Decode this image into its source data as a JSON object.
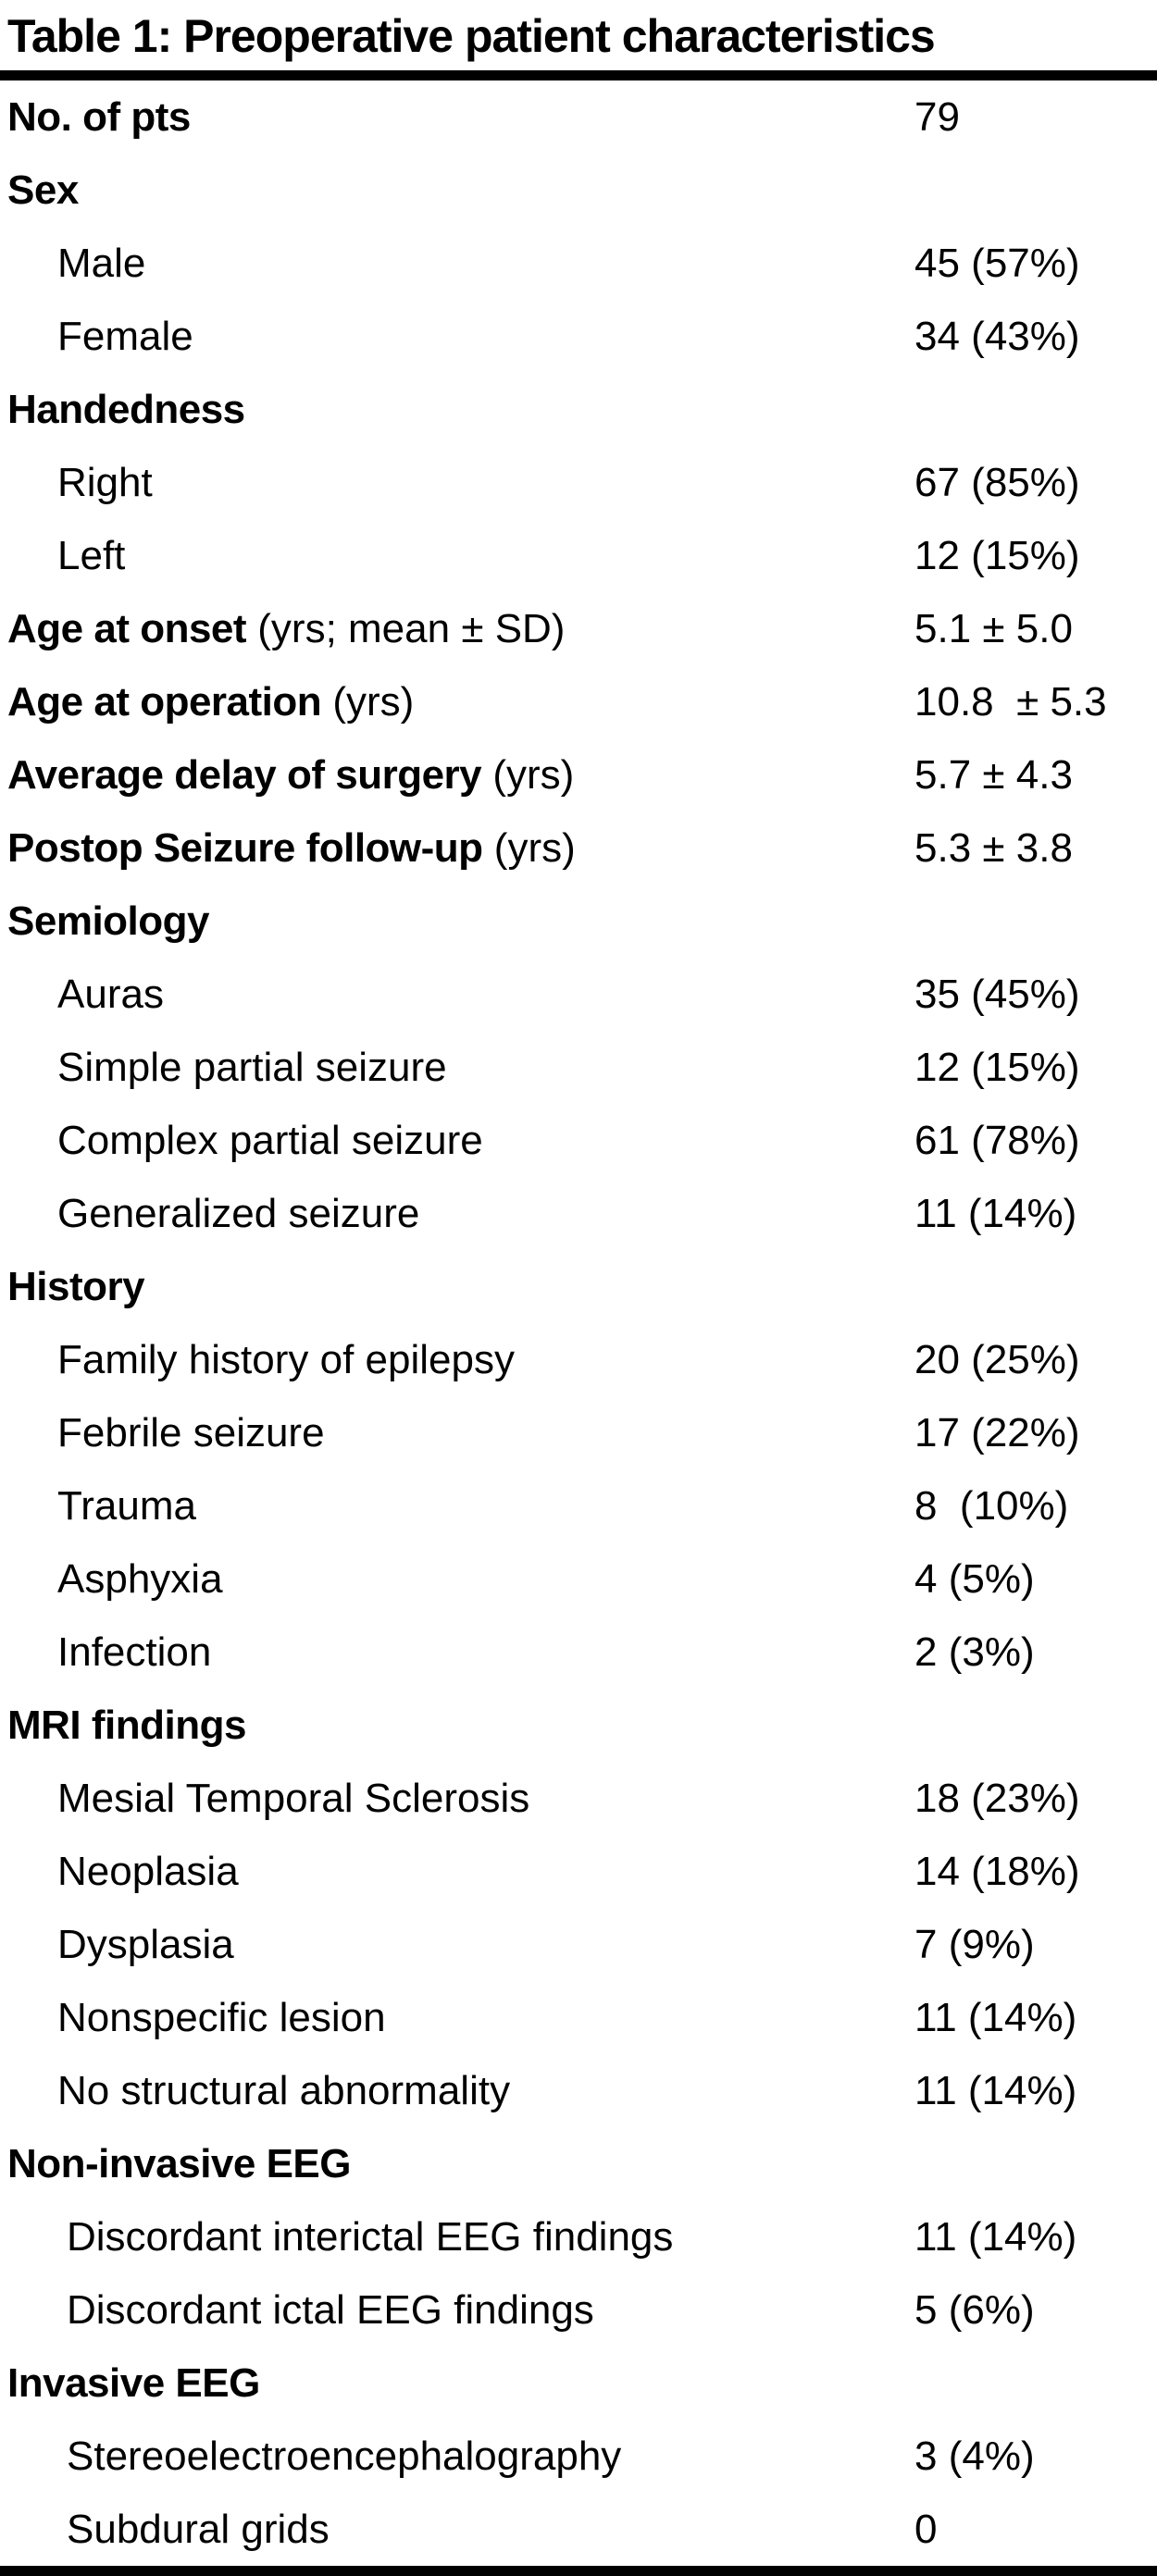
{
  "colors": {
    "text": "#000000",
    "background": "#ffffff",
    "rule": "#000000"
  },
  "table": {
    "title": "Table 1: Preoperative patient characteristics",
    "rows": [
      {
        "label": "No. of pts",
        "suffix": "",
        "value": "79",
        "bold": true,
        "indent": 0
      },
      {
        "label": "Sex",
        "suffix": "",
        "value": "",
        "bold": true,
        "indent": 0
      },
      {
        "label": "Male",
        "suffix": "",
        "value": "45 (57%)",
        "bold": false,
        "indent": 1
      },
      {
        "label": "Female",
        "suffix": "",
        "value": "34 (43%)",
        "bold": false,
        "indent": 1
      },
      {
        "label": "Handedness",
        "suffix": "",
        "value": "",
        "bold": true,
        "indent": 0
      },
      {
        "label": "Right",
        "suffix": "",
        "value": "67 (85%)",
        "bold": false,
        "indent": 1
      },
      {
        "label": "Left",
        "suffix": "",
        "value": "12 (15%)",
        "bold": false,
        "indent": 1
      },
      {
        "label": "Age at onset",
        "suffix": " (yrs; mean ± SD)",
        "value": "5.1 ± 5.0",
        "bold": true,
        "indent": 0
      },
      {
        "label": "Age at operation",
        "suffix": " (yrs)",
        "value": "10.8  ± 5.3",
        "bold": true,
        "indent": 0
      },
      {
        "label": "Average delay of surgery",
        "suffix": " (yrs)",
        "value": "5.7 ± 4.3",
        "bold": true,
        "indent": 0
      },
      {
        "label": "Postop Seizure follow-up",
        "suffix": " (yrs)",
        "value": "5.3 ± 3.8",
        "bold": true,
        "indent": 0
      },
      {
        "label": "Semiology",
        "suffix": "",
        "value": "",
        "bold": true,
        "indent": 0
      },
      {
        "label": "Auras",
        "suffix": "",
        "value": "35 (45%)",
        "bold": false,
        "indent": 1
      },
      {
        "label": "Simple partial seizure",
        "suffix": "",
        "value": "12 (15%)",
        "bold": false,
        "indent": 1
      },
      {
        "label": "Complex partial seizure",
        "suffix": "",
        "value": "61 (78%)",
        "bold": false,
        "indent": 1
      },
      {
        "label": "Generalized seizure",
        "suffix": "",
        "value": "11 (14%)",
        "bold": false,
        "indent": 1
      },
      {
        "label": "History",
        "suffix": "",
        "value": "",
        "bold": true,
        "indent": 0
      },
      {
        "label": "Family history of epilepsy",
        "suffix": "",
        "value": "20 (25%)",
        "bold": false,
        "indent": 1
      },
      {
        "label": "Febrile seizure",
        "suffix": "",
        "value": "17 (22%)",
        "bold": false,
        "indent": 1
      },
      {
        "label": "Trauma",
        "suffix": "",
        "value": "8  (10%)",
        "bold": false,
        "indent": 1
      },
      {
        "label": "Asphyxia",
        "suffix": "",
        "value": "4 (5%)",
        "bold": false,
        "indent": 1
      },
      {
        "label": "Infection",
        "suffix": "",
        "value": "2 (3%)",
        "bold": false,
        "indent": 1
      },
      {
        "label": "MRI findings",
        "suffix": "",
        "value": "",
        "bold": true,
        "indent": 0
      },
      {
        "label": "Mesial Temporal Sclerosis",
        "suffix": "",
        "value": "18 (23%)",
        "bold": false,
        "indent": 1
      },
      {
        "label": "Neoplasia",
        "suffix": "",
        "value": "14 (18%)",
        "bold": false,
        "indent": 1
      },
      {
        "label": "Dysplasia",
        "suffix": "",
        "value": "7 (9%)",
        "bold": false,
        "indent": 1
      },
      {
        "label": "Nonspecific lesion",
        "suffix": "",
        "value": "11 (14%)",
        "bold": false,
        "indent": 1
      },
      {
        "label": "No structural abnormality",
        "suffix": "",
        "value": "11 (14%)",
        "bold": false,
        "indent": 1
      },
      {
        "label": "Non-invasive EEG",
        "suffix": "",
        "value": "",
        "bold": true,
        "indent": 0
      },
      {
        "label": "Discordant interictal EEG findings",
        "suffix": "",
        "value": "11 (14%)",
        "bold": false,
        "indent": 2
      },
      {
        "label": "Discordant ictal EEG findings",
        "suffix": "",
        "value": "5 (6%)",
        "bold": false,
        "indent": 2
      },
      {
        "label": "Invasive EEG",
        "suffix": "",
        "value": "",
        "bold": true,
        "indent": 0
      },
      {
        "label": "Stereoelectroencephalography",
        "suffix": "",
        "value": "3 (4%)",
        "bold": false,
        "indent": 2
      },
      {
        "label": "Subdural grids",
        "suffix": "",
        "value": "0",
        "bold": false,
        "indent": 2
      }
    ]
  }
}
